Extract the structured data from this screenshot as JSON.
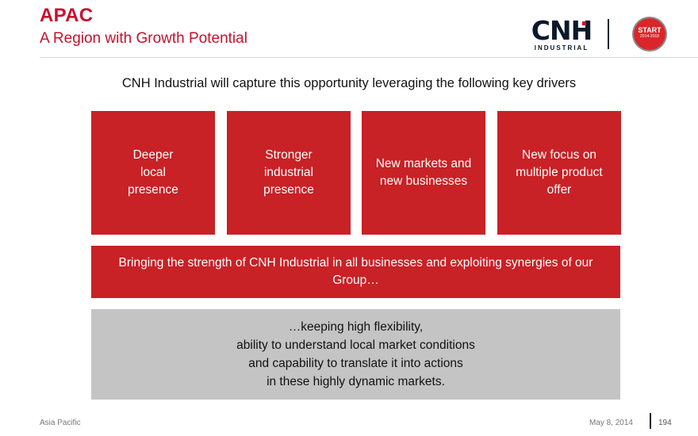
{
  "header": {
    "title": "APAC",
    "subtitle": "A Region with Growth Potential",
    "logo_word": "CNH",
    "logo_sub": "INDUSTRIAL",
    "badge_line1": "START",
    "badge_line2": "2014-2018"
  },
  "lead": "CNH Industrial will capture this opportunity leveraging the following key drivers",
  "drivers": [
    "Deeper\nlocal\npresence",
    "Stronger\nindustrial\npresence",
    "New markets and\nnew businesses",
    "New focus on\nmultiple product\noffer"
  ],
  "strength": "Bringing the strength of CNH Industrial in all businesses and exploiting synergies of our\nGroup…",
  "flexibility": "…keeping high flexibility,\nability to understand local market conditions\nand capability to translate it into actions\nin these highly dynamic markets.",
  "footer": {
    "section": "Asia Pacific",
    "date": "May 8, 2014",
    "page": "194"
  },
  "colors": {
    "accent_red": "#c82126",
    "gray_box": "#c4c4c4"
  }
}
